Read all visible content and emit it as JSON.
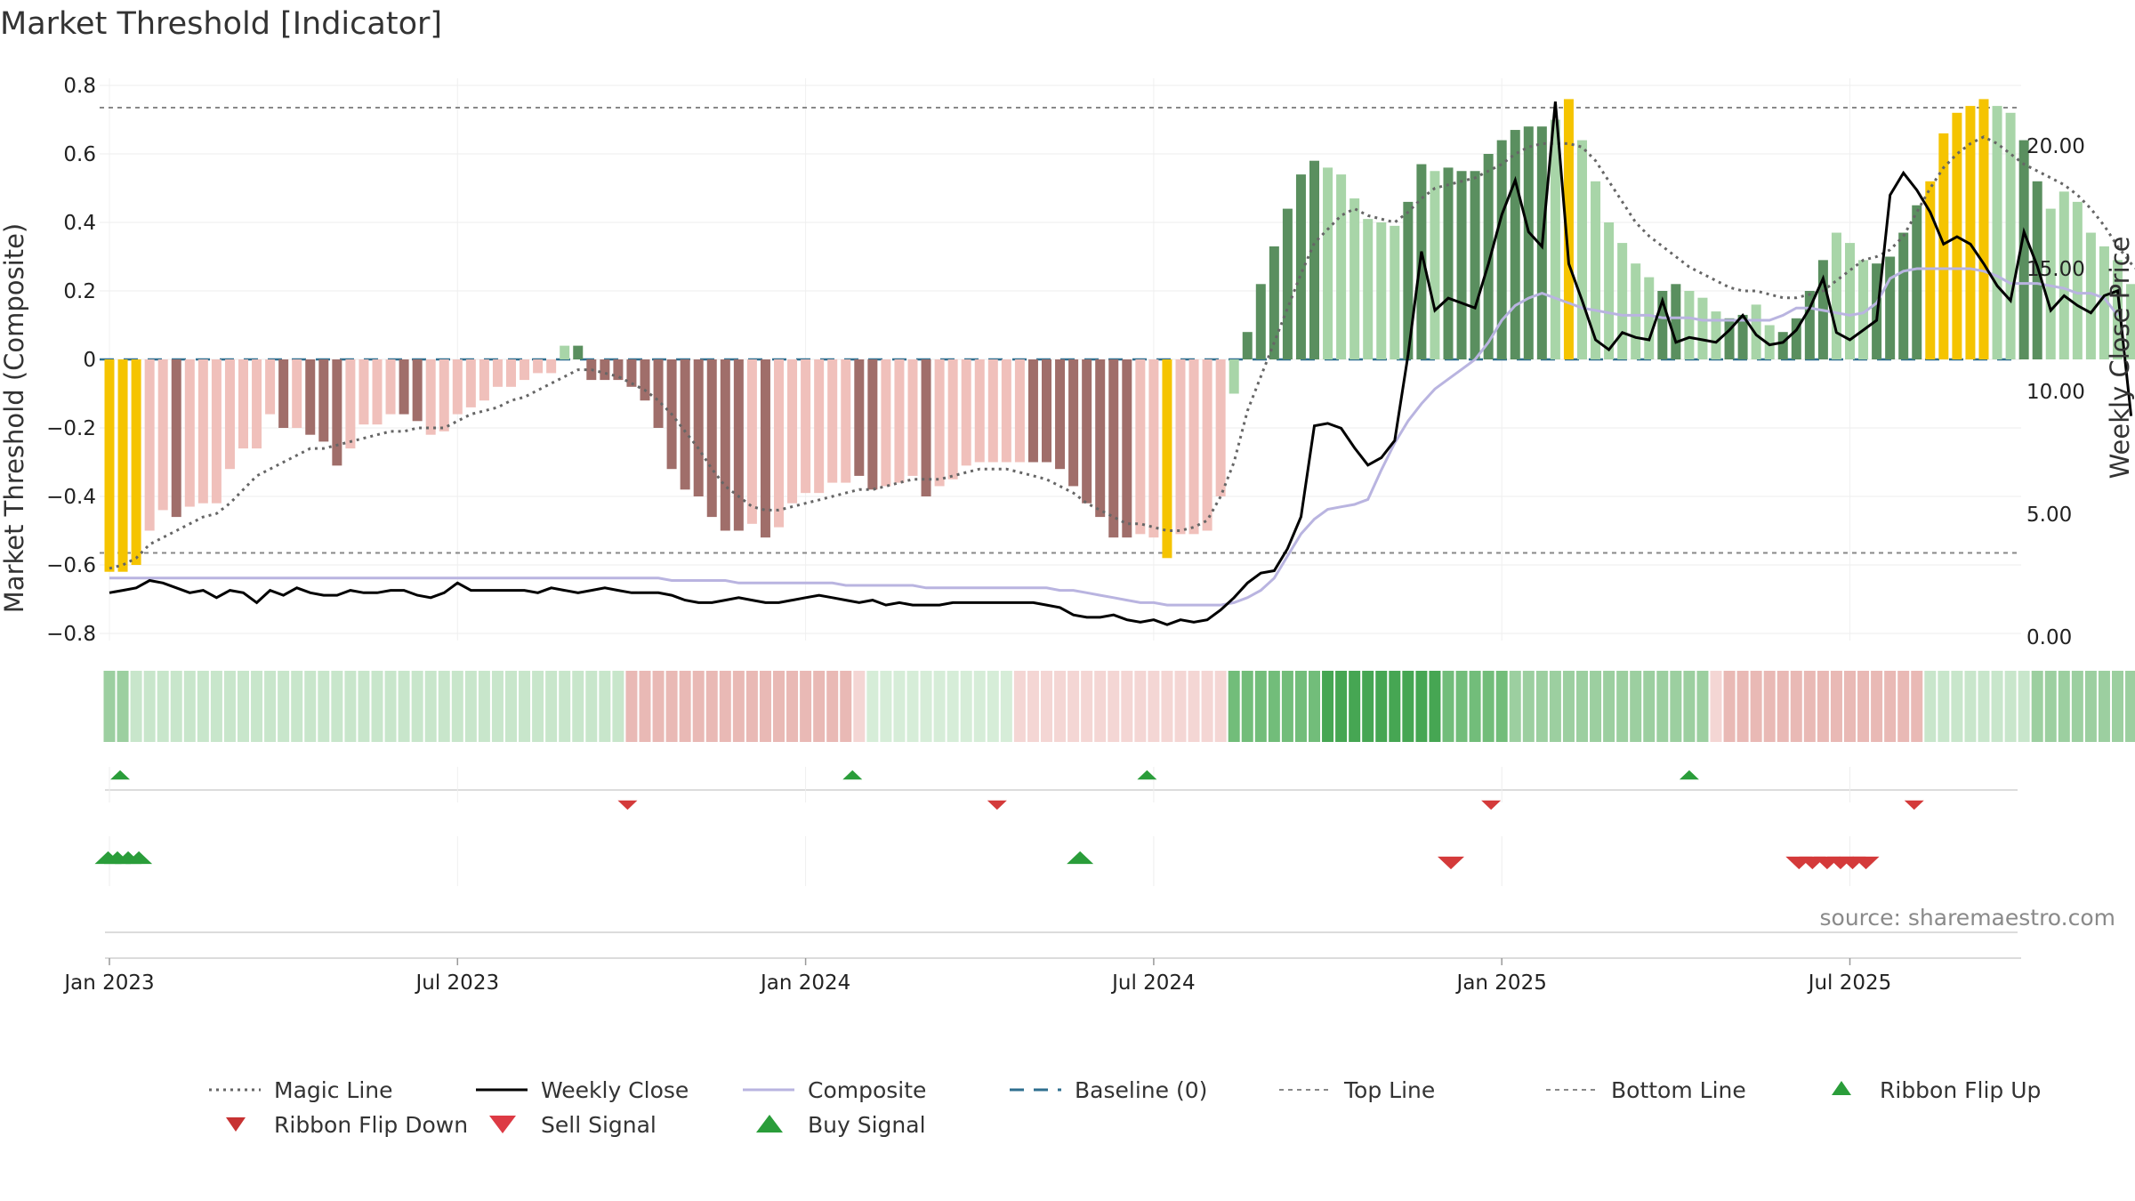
{
  "title": "Market Threshold [Indicator]",
  "source": "source: sharemaestro.com",
  "colors": {
    "gold": "#f5c400",
    "dark_green": "#5a8f5f",
    "light_green": "#a8d5a8",
    "dark_red": "#a06e6a",
    "light_red": "#f0c0bb",
    "weekly_close": "#000000",
    "composite": "#b9b4e0",
    "magic_line": "#666666",
    "baseline": "#2f6f8f",
    "threshold_line": "#888888",
    "buy": "#2a9d3a",
    "sell": "#d43a3a"
  },
  "chart_data": {
    "type": "bar",
    "ylabel": "Market Threshold (Composite)",
    "y2label": "Weekly Close Price",
    "ylim": [
      -0.82,
      0.82
    ],
    "y2lim": [
      0,
      24
    ],
    "yticks": [
      "0.8",
      "0.6",
      "0.4",
      "0.2",
      "0",
      "−0.2",
      "−0.4",
      "−0.6",
      "−0.8"
    ],
    "ytick_values": [
      0.8,
      0.6,
      0.4,
      0.2,
      0,
      -0.2,
      -0.4,
      -0.6,
      -0.8
    ],
    "y2ticks": [
      "20.00",
      "15.00",
      "10.00",
      "5.00",
      "0.00"
    ],
    "y2tick_values": [
      20,
      15,
      10,
      5,
      0
    ],
    "xticks": [
      "Jan 2023",
      "Jul 2023",
      "Jan 2024",
      "Jul 2024",
      "Jan 2025",
      "Jul 2025"
    ],
    "xtick_weeks": [
      0,
      26,
      52,
      78,
      104,
      130
    ],
    "top_line": 0.735,
    "bottom_line": -0.565,
    "composite": [
      -0.62,
      -0.62,
      -0.6,
      -0.5,
      -0.44,
      -0.46,
      -0.43,
      -0.42,
      -0.42,
      -0.32,
      -0.26,
      -0.26,
      -0.16,
      -0.2,
      -0.2,
      -0.22,
      -0.24,
      -0.31,
      -0.26,
      -0.19,
      -0.19,
      -0.16,
      -0.16,
      -0.18,
      -0.22,
      -0.21,
      -0.16,
      -0.14,
      -0.12,
      -0.08,
      -0.08,
      -0.06,
      -0.04,
      -0.04,
      0.04,
      0.04,
      -0.06,
      -0.06,
      -0.06,
      -0.08,
      -0.12,
      -0.2,
      -0.32,
      -0.38,
      -0.4,
      -0.46,
      -0.5,
      -0.5,
      -0.48,
      -0.52,
      -0.49,
      -0.42,
      -0.39,
      -0.39,
      -0.36,
      -0.36,
      -0.34,
      -0.38,
      -0.37,
      -0.36,
      -0.34,
      -0.4,
      -0.37,
      -0.35,
      -0.31,
      -0.3,
      -0.3,
      -0.3,
      -0.3,
      -0.3,
      -0.3,
      -0.32,
      -0.37,
      -0.42,
      -0.46,
      -0.52,
      -0.52,
      -0.51,
      -0.52,
      -0.58,
      -0.51,
      -0.51,
      -0.5,
      -0.4,
      -0.1,
      0.08,
      0.22,
      0.33,
      0.44,
      0.54,
      0.58,
      0.56,
      0.54,
      0.47,
      0.41,
      0.4,
      0.39,
      0.46,
      0.57,
      0.55,
      0.56,
      0.55,
      0.55,
      0.6,
      0.64,
      0.67,
      0.68,
      0.68,
      0.7,
      0.76,
      0.64,
      0.52,
      0.4,
      0.34,
      0.28,
      0.24,
      0.2,
      0.22,
      0.2,
      0.18,
      0.14,
      0.12,
      0.13,
      0.16,
      0.1,
      0.08,
      0.12,
      0.2,
      0.29,
      0.37,
      0.34,
      0.29,
      0.28,
      0.3,
      0.37,
      0.45,
      0.52,
      0.66,
      0.72,
      0.74,
      0.76,
      0.74,
      0.72,
      0.64,
      0.52,
      0.44,
      0.49,
      0.46,
      0.37,
      0.33,
      0.29,
      0.22,
      0.02
    ],
    "bar_color": [
      "G",
      "G",
      "G",
      "r",
      "r",
      "R",
      "r",
      "r",
      "r",
      "r",
      "r",
      "r",
      "r",
      "R",
      "r",
      "R",
      "R",
      "R",
      "r",
      "r",
      "r",
      "r",
      "R",
      "R",
      "r",
      "r",
      "r",
      "r",
      "r",
      "r",
      "r",
      "r",
      "r",
      "r",
      "g",
      "D",
      "R",
      "R",
      "R",
      "R",
      "R",
      "R",
      "R",
      "R",
      "R",
      "R",
      "R",
      "R",
      "r",
      "R",
      "r",
      "r",
      "r",
      "r",
      "r",
      "r",
      "R",
      "R",
      "r",
      "r",
      "r",
      "R",
      "r",
      "r",
      "r",
      "r",
      "r",
      "r",
      "r",
      "R",
      "R",
      "R",
      "R",
      "R",
      "R",
      "R",
      "R",
      "r",
      "r",
      "G",
      "r",
      "r",
      "r",
      "r",
      "g",
      "D",
      "D",
      "D",
      "D",
      "D",
      "D",
      "g",
      "g",
      "g",
      "g",
      "g",
      "g",
      "D",
      "D",
      "g",
      "D",
      "D",
      "D",
      "D",
      "D",
      "D",
      "D",
      "D",
      "g",
      "G",
      "g",
      "g",
      "g",
      "g",
      "g",
      "g",
      "D",
      "D",
      "g",
      "g",
      "g",
      "D",
      "D",
      "g",
      "g",
      "D",
      "D",
      "D",
      "D",
      "g",
      "g",
      "g",
      "D",
      "D",
      "D",
      "D",
      "G",
      "G",
      "G",
      "G",
      "G",
      "g",
      "g",
      "D",
      "D",
      "g",
      "g",
      "g",
      "g",
      "g"
    ],
    "weekly_close": [
      1.8,
      1.9,
      2.0,
      2.3,
      2.2,
      2.0,
      1.8,
      1.9,
      1.6,
      1.9,
      1.8,
      1.4,
      1.9,
      1.7,
      2.0,
      1.8,
      1.7,
      1.7,
      1.9,
      1.8,
      1.8,
      1.9,
      1.9,
      1.7,
      1.6,
      1.8,
      2.2,
      1.9,
      1.9,
      1.9,
      1.9,
      1.9,
      1.8,
      2.0,
      1.9,
      1.8,
      1.9,
      2.0,
      1.9,
      1.8,
      1.8,
      1.8,
      1.7,
      1.5,
      1.4,
      1.4,
      1.5,
      1.6,
      1.5,
      1.4,
      1.4,
      1.5,
      1.6,
      1.7,
      1.6,
      1.5,
      1.4,
      1.5,
      1.3,
      1.4,
      1.3,
      1.3,
      1.3,
      1.4,
      1.4,
      1.4,
      1.4,
      1.4,
      1.4,
      1.4,
      1.3,
      1.2,
      0.9,
      0.8,
      0.8,
      0.9,
      0.7,
      0.6,
      0.7,
      0.5,
      0.7,
      0.6,
      0.7,
      1.1,
      1.6,
      2.2,
      2.6,
      2.7,
      3.6,
      4.9,
      8.6,
      8.7,
      8.5,
      7.7,
      7.0,
      7.3,
      8.0,
      11.5,
      15.7,
      13.3,
      13.8,
      13.6,
      13.4,
      15.2,
      17.2,
      18.6,
      16.5,
      15.9,
      21.8,
      15.2,
      13.7,
      12.1,
      11.7,
      12.4,
      12.2,
      12.1,
      13.7,
      12.0,
      12.2,
      12.1,
      12.0,
      12.5,
      13.1,
      12.3,
      11.9,
      12.0,
      12.5,
      13.4,
      14.6,
      12.4,
      12.1,
      12.5,
      12.9,
      18.0,
      18.9,
      18.2,
      17.3,
      16.0,
      16.3,
      16.0,
      15.2,
      14.3,
      13.7,
      16.5,
      15.1,
      13.3,
      13.9,
      13.5,
      13.2,
      13.9,
      14.1,
      9.0
    ],
    "composite_line": [
      2.4,
      2.4,
      2.4,
      2.4,
      2.4,
      2.4,
      2.4,
      2.4,
      2.4,
      2.4,
      2.4,
      2.4,
      2.4,
      2.4,
      2.4,
      2.4,
      2.4,
      2.4,
      2.4,
      2.4,
      2.4,
      2.4,
      2.4,
      2.4,
      2.4,
      2.4,
      2.4,
      2.4,
      2.4,
      2.4,
      2.4,
      2.4,
      2.4,
      2.4,
      2.4,
      2.4,
      2.4,
      2.4,
      2.4,
      2.4,
      2.4,
      2.4,
      2.3,
      2.3,
      2.3,
      2.3,
      2.3,
      2.2,
      2.2,
      2.2,
      2.2,
      2.2,
      2.2,
      2.2,
      2.2,
      2.1,
      2.1,
      2.1,
      2.1,
      2.1,
      2.1,
      2.0,
      2.0,
      2.0,
      2.0,
      2.0,
      2.0,
      2.0,
      2.0,
      2.0,
      2.0,
      1.9,
      1.9,
      1.8,
      1.7,
      1.6,
      1.5,
      1.4,
      1.4,
      1.3,
      1.3,
      1.3,
      1.3,
      1.3,
      1.4,
      1.6,
      1.9,
      2.4,
      3.3,
      4.2,
      4.8,
      5.2,
      5.3,
      5.4,
      5.6,
      6.8,
      7.9,
      8.8,
      9.5,
      10.1,
      10.5,
      10.9,
      11.3,
      12.0,
      12.9,
      13.5,
      13.8,
      14.0,
      13.8,
      13.6,
      13.4,
      13.3,
      13.2,
      13.1,
      13.1,
      13.1,
      13.0,
      13.0,
      13.0,
      12.9,
      12.9,
      12.9,
      12.9,
      12.9,
      12.9,
      13.1,
      13.4,
      13.4,
      13.3,
      13.2,
      13.1,
      13.2,
      13.6,
      14.6,
      14.9,
      15.0,
      15.0,
      15.0,
      15.0,
      15.0,
      14.9,
      14.7,
      14.4,
      14.4,
      14.4,
      14.3,
      14.2,
      14.0,
      14.0,
      13.8,
      13.1
    ],
    "magic_line": [
      -0.61,
      -0.6,
      -0.58,
      -0.54,
      -0.52,
      -0.5,
      -0.48,
      -0.46,
      -0.45,
      -0.42,
      -0.38,
      -0.34,
      -0.32,
      -0.3,
      -0.28,
      -0.26,
      -0.26,
      -0.25,
      -0.24,
      -0.23,
      -0.22,
      -0.21,
      -0.21,
      -0.2,
      -0.2,
      -0.2,
      -0.18,
      -0.16,
      -0.15,
      -0.14,
      -0.12,
      -0.11,
      -0.09,
      -0.07,
      -0.05,
      -0.03,
      -0.03,
      -0.04,
      -0.05,
      -0.07,
      -0.09,
      -0.12,
      -0.16,
      -0.21,
      -0.26,
      -0.32,
      -0.37,
      -0.4,
      -0.43,
      -0.44,
      -0.44,
      -0.43,
      -0.42,
      -0.41,
      -0.4,
      -0.39,
      -0.38,
      -0.38,
      -0.37,
      -0.36,
      -0.35,
      -0.35,
      -0.35,
      -0.34,
      -0.33,
      -0.32,
      -0.32,
      -0.32,
      -0.33,
      -0.34,
      -0.35,
      -0.37,
      -0.39,
      -0.42,
      -0.44,
      -0.46,
      -0.48,
      -0.48,
      -0.49,
      -0.5,
      -0.5,
      -0.49,
      -0.47,
      -0.4,
      -0.3,
      -0.15,
      -0.05,
      0.05,
      0.15,
      0.25,
      0.34,
      0.38,
      0.42,
      0.44,
      0.42,
      0.41,
      0.4,
      0.43,
      0.47,
      0.5,
      0.51,
      0.52,
      0.53,
      0.55,
      0.57,
      0.6,
      0.62,
      0.63,
      0.63,
      0.63,
      0.62,
      0.58,
      0.52,
      0.46,
      0.4,
      0.36,
      0.33,
      0.3,
      0.27,
      0.25,
      0.23,
      0.21,
      0.2,
      0.2,
      0.19,
      0.18,
      0.18,
      0.19,
      0.2,
      0.23,
      0.26,
      0.29,
      0.3,
      0.32,
      0.36,
      0.43,
      0.5,
      0.56,
      0.6,
      0.63,
      0.65,
      0.63,
      0.6,
      0.57,
      0.55,
      0.53,
      0.51,
      0.48,
      0.44,
      0.39,
      0.33,
      0.28,
      0.24,
      0.21
    ],
    "ribbon_levels": [
      2,
      2,
      1,
      1,
      1,
      1,
      1,
      1,
      1,
      1,
      1,
      1,
      1,
      1,
      1,
      1,
      1,
      1,
      1,
      1,
      1,
      1,
      1,
      1,
      1,
      1,
      1,
      1,
      1,
      1,
      1,
      1,
      1,
      1,
      1,
      1,
      1,
      1,
      1,
      -2,
      -2,
      -2,
      -2,
      -2,
      -2,
      -2,
      -2,
      -2,
      -2,
      -2,
      -2,
      -2,
      -2,
      -2,
      -2,
      -2,
      -1,
      0,
      0,
      0,
      0,
      0,
      0,
      0,
      0,
      0,
      0,
      0,
      -1,
      -1,
      -1,
      -1,
      -1,
      -1,
      -1,
      -1,
      -1,
      -1,
      -1,
      -1,
      -1,
      -1,
      -1,
      -1,
      3,
      3,
      3,
      3,
      3,
      3,
      3,
      4,
      4,
      4,
      4,
      4,
      4,
      4,
      4,
      4,
      3,
      3,
      3,
      3,
      3,
      2,
      2,
      2,
      2,
      2,
      2,
      2,
      2,
      2,
      2,
      2,
      2,
      2,
      2,
      2,
      -1,
      -2,
      -2,
      -2,
      -2,
      -2,
      -2,
      -2,
      -2,
      -2,
      -2,
      -2,
      -2,
      -2,
      -2,
      -2,
      1,
      1,
      1,
      1,
      1,
      1,
      1,
      1,
      2,
      2,
      2,
      2,
      2,
      2,
      2,
      2,
      1,
      1,
      -1,
      -2,
      -2,
      -2,
      -2,
      -2,
      -2,
      -3
    ],
    "ribbon_flip_up": [
      0.8,
      55.5,
      77.5,
      118
    ],
    "ribbon_flip_down": [
      38.7,
      66.3,
      103.2,
      134.8
    ],
    "buy_signals": [
      -0.1,
      0.6,
      1.4,
      2.2,
      72.5
    ],
    "sell_signals": [
      100.2,
      126.2,
      127.2,
      128.3,
      129.3,
      130.2,
      131.2
    ],
    "legend": [
      {
        "label": "Magic Line",
        "kind": "dotted"
      },
      {
        "label": "Weekly Close",
        "kind": "solid-black"
      },
      {
        "label": "Composite",
        "kind": "solid-lavender"
      },
      {
        "label": "Baseline (0)",
        "kind": "dashed-blue"
      },
      {
        "label": "Top Line",
        "kind": "dashed-grey"
      },
      {
        "label": "Bottom Line",
        "kind": "dashed-grey"
      },
      {
        "label": "Ribbon Flip Up",
        "kind": "tri-up-green"
      },
      {
        "label": "Ribbon Flip Down",
        "kind": "tri-down-red"
      },
      {
        "label": "Sell Signal",
        "kind": "tri-down-red-big"
      },
      {
        "label": "Buy Signal",
        "kind": "tri-up-green-big"
      }
    ]
  }
}
